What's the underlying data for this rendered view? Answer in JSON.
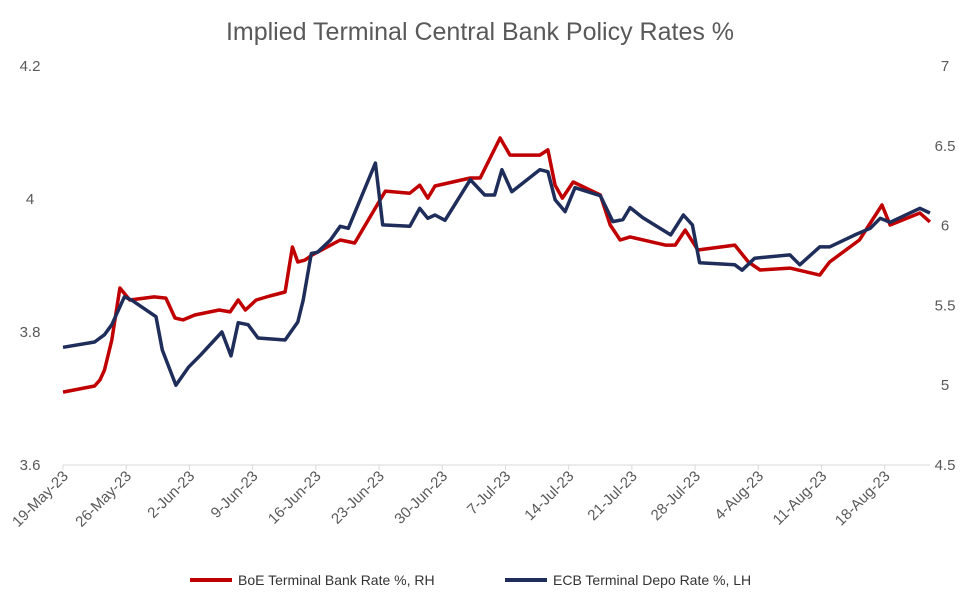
{
  "chart_data": {
    "type": "line",
    "title": "Implied Terminal Central Bank Policy Rates %",
    "x_unit": "days since 19-May-23",
    "x_tick_labels": [
      "19-May-23",
      "26-May-23",
      "2-Jun-23",
      "9-Jun-23",
      "16-Jun-23",
      "23-Jun-23",
      "30-Jun-23",
      "7-Jul-23",
      "14-Jul-23",
      "21-Jul-23",
      "28-Jul-23",
      "4-Aug-23",
      "11-Aug-23",
      "18-Aug-23"
    ],
    "x_range": [
      0,
      101
    ],
    "y_left": {
      "range": [
        3.6,
        4.2
      ],
      "ticks": [
        "3.6",
        "3.8",
        "4",
        "4.2"
      ],
      "tick_values": [
        3.6,
        3.8,
        4.0,
        4.2
      ]
    },
    "y_right": {
      "range": [
        4.5,
        7
      ],
      "ticks": [
        "4.5",
        "5",
        "5.5",
        "6",
        "6.5",
        "7"
      ],
      "tick_values": [
        4.5,
        5,
        5.5,
        6,
        6.5,
        7
      ]
    },
    "grid": false,
    "legend_position": "bottom",
    "series": [
      {
        "name": "BoE Terminal Bank Rate %, RH",
        "axis": "right",
        "color": "#C00000",
        "x": [
          0,
          3.5,
          4.1,
          4.6,
          5.4,
          6.3,
          7.4,
          10.1,
          11.4,
          12.4,
          13.3,
          14.6,
          17.3,
          18.5,
          19.4,
          20.2,
          21.4,
          22.9,
          24.6,
          25.4,
          26.0,
          26.8,
          27.6,
          30.7,
          32.3,
          35.1,
          35.7,
          38.4,
          39.5,
          40.4,
          41.2,
          45.1,
          46.2,
          48.4,
          49.5,
          52.8,
          53.7,
          54.5,
          55.3,
          56.5,
          59.5,
          60.6,
          61.7,
          62.8,
          66.7,
          67.8,
          68.9,
          70.3,
          74.4,
          75.9,
          77.2,
          80.5,
          83.8,
          84.9,
          88.2,
          90.7,
          91.6,
          94.9,
          96.0
        ],
        "values": [
          4.957,
          4.995,
          5.033,
          5.095,
          5.283,
          5.609,
          5.534,
          5.553,
          5.546,
          5.421,
          5.409,
          5.44,
          5.471,
          5.459,
          5.534,
          5.471,
          5.534,
          5.559,
          5.584,
          5.866,
          5.772,
          5.784,
          5.816,
          5.91,
          5.891,
          6.16,
          6.216,
          6.203,
          6.253,
          6.172,
          6.248,
          6.298,
          6.298,
          6.549,
          6.442,
          6.442,
          6.474,
          6.253,
          6.172,
          6.273,
          6.192,
          6.004,
          5.91,
          5.929,
          5.878,
          5.878,
          5.972,
          5.847,
          5.878,
          5.772,
          5.722,
          5.734,
          5.69,
          5.772,
          5.91,
          6.129,
          6.004,
          6.079,
          6.023
        ]
      },
      {
        "name": "ECB Terminal Depo Rate %, LH",
        "axis": "left",
        "color": "#1F2D5A",
        "x": [
          0,
          3.5,
          4.6,
          5.4,
          6.8,
          7.6,
          10.3,
          11.0,
          12.5,
          13.9,
          15.2,
          17.6,
          18.6,
          19.4,
          20.5,
          21.6,
          24.6,
          26.0,
          26.6,
          27.5,
          28.2,
          29.6,
          30.7,
          31.6,
          34.6,
          35.4,
          38.4,
          39.5,
          40.4,
          41.2,
          42.3,
          45.1,
          46.7,
          47.8,
          48.6,
          49.7,
          52.8,
          53.7,
          54.5,
          55.6,
          56.7,
          59.5,
          60.9,
          62.0,
          62.8,
          64.2,
          67.3,
          68.7,
          69.7,
          70.5,
          74.4,
          75.2,
          76.6,
          80.5,
          81.6,
          83.8,
          84.9,
          87.7,
          89.4,
          90.5,
          91.6,
          94.9,
          96.0
        ],
        "values": [
          3.777,
          3.785,
          3.796,
          3.811,
          3.853,
          3.848,
          3.823,
          3.773,
          3.72,
          3.747,
          3.765,
          3.8,
          3.764,
          3.814,
          3.811,
          3.791,
          3.788,
          3.815,
          3.848,
          3.918,
          3.92,
          3.938,
          3.959,
          3.956,
          4.054,
          3.961,
          3.959,
          3.986,
          3.971,
          3.976,
          3.968,
          4.029,
          4.006,
          4.006,
          4.044,
          4.011,
          4.044,
          4.041,
          3.999,
          3.981,
          4.017,
          4.005,
          3.966,
          3.969,
          3.987,
          3.972,
          3.946,
          3.976,
          3.961,
          3.904,
          3.901,
          3.893,
          3.911,
          3.916,
          3.901,
          3.928,
          3.928,
          3.946,
          3.956,
          3.971,
          3.965,
          3.986,
          3.979
        ]
      }
    ]
  }
}
